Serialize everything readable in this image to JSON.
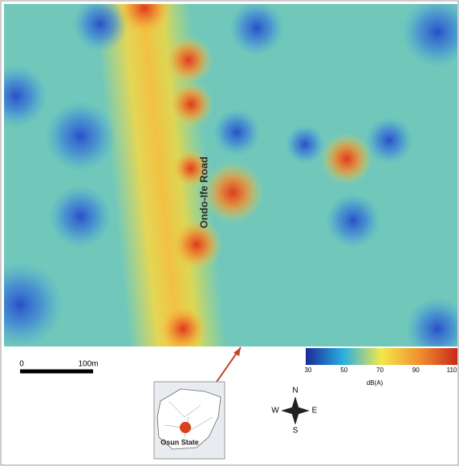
{
  "map": {
    "road_label": "Ondo-Ife Road",
    "scale_bar": {
      "start": "0",
      "end": "100m"
    },
    "legend": {
      "ticks": [
        30,
        50,
        70,
        90,
        110
      ],
      "unit": "dB(A)"
    },
    "compass": {
      "north": "N",
      "south": "S",
      "east": "E",
      "west": "W"
    },
    "inset": {
      "label": "Osun State"
    }
  }
}
